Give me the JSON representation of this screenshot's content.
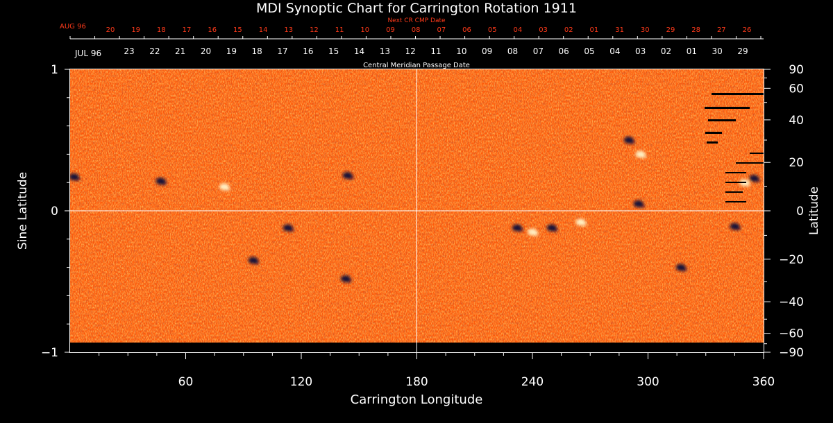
{
  "chart_data": {
    "type": "heatmap",
    "title": "MDI Synoptic Chart for Carrington Rotation 1911",
    "xlabel": "Carrington Longitude",
    "ylabel_left": "Sine Latitude",
    "ylabel_right": "Latitude",
    "xlim": [
      0,
      360
    ],
    "ylim": [
      -1,
      1
    ],
    "x_ticks": [
      60,
      120,
      180,
      240,
      300,
      360
    ],
    "y_ticks_left": [
      {
        "value": 1,
        "label": "1"
      },
      {
        "value": 0,
        "label": "0"
      },
      {
        "value": -1,
        "label": "−1"
      }
    ],
    "y_ticks_right": [
      {
        "lat": 90,
        "label": "90"
      },
      {
        "lat": 60,
        "label": "60"
      },
      {
        "lat": 40,
        "label": "40"
      },
      {
        "lat": 20,
        "label": "20"
      },
      {
        "lat": 0,
        "label": "0"
      },
      {
        "lat": -20,
        "label": "−20"
      },
      {
        "lat": -40,
        "label": "−40"
      },
      {
        "lat": -60,
        "label": "−60"
      },
      {
        "lat": -90,
        "label": "−90"
      }
    ],
    "center_lines": {
      "longitude": 180,
      "sine_latitude": 0
    },
    "top_axis_next": {
      "caption": "Next CR CMP Date",
      "month_label": "AUG 96",
      "dates": [
        "20",
        "19",
        "18",
        "17",
        "16",
        "15",
        "14",
        "13",
        "12",
        "11",
        "10",
        "09",
        "08",
        "07",
        "06",
        "05",
        "04",
        "03",
        "02",
        "01",
        "31",
        "30",
        "29",
        "28",
        "27",
        "26"
      ],
      "color": "#ff3a1a"
    },
    "top_axis_cmp": {
      "caption": "Central Meridian Passage Date",
      "month_label": "JUL 96",
      "dates": [
        "23",
        "22",
        "21",
        "20",
        "19",
        "18",
        "17",
        "16",
        "15",
        "14",
        "13",
        "12",
        "11",
        "10",
        "09",
        "08",
        "07",
        "06",
        "05",
        "04",
        "03",
        "02",
        "01",
        "30",
        "29"
      ],
      "color": "#ffffff"
    },
    "colorscale": {
      "background": "#ff5a0a",
      "low": "#10083a",
      "high": "#fff3c8"
    },
    "active_regions": [
      {
        "lon": 290,
        "lat": 0.5,
        "polarity": "negative"
      },
      {
        "lon": 296,
        "lat": 0.4,
        "polarity": "positive"
      },
      {
        "lon": 250,
        "lat": -0.12,
        "polarity": "negative"
      },
      {
        "lon": 240,
        "lat": -0.15,
        "polarity": "positive"
      },
      {
        "lon": 232,
        "lat": -0.12,
        "polarity": "negative"
      },
      {
        "lon": 265,
        "lat": -0.08,
        "polarity": "positive"
      },
      {
        "lon": 295,
        "lat": 0.05,
        "polarity": "negative"
      },
      {
        "lon": 350,
        "lat": 0.2,
        "polarity": "positive"
      },
      {
        "lon": 355,
        "lat": 0.23,
        "polarity": "negative"
      },
      {
        "lon": 47,
        "lat": 0.21,
        "polarity": "negative"
      },
      {
        "lon": 144,
        "lat": 0.25,
        "polarity": "negative"
      },
      {
        "lon": 80,
        "lat": 0.17,
        "polarity": "positive"
      },
      {
        "lon": 95,
        "lat": -0.35,
        "polarity": "negative"
      },
      {
        "lon": 113,
        "lat": -0.12,
        "polarity": "negative"
      },
      {
        "lon": 2,
        "lat": 0.24,
        "polarity": "negative"
      },
      {
        "lon": 317,
        "lat": -0.4,
        "polarity": "negative"
      },
      {
        "lon": 345,
        "lat": -0.11,
        "polarity": "negative"
      },
      {
        "lon": 143,
        "lat": -0.48,
        "polarity": "negative"
      }
    ],
    "grid": false
  }
}
